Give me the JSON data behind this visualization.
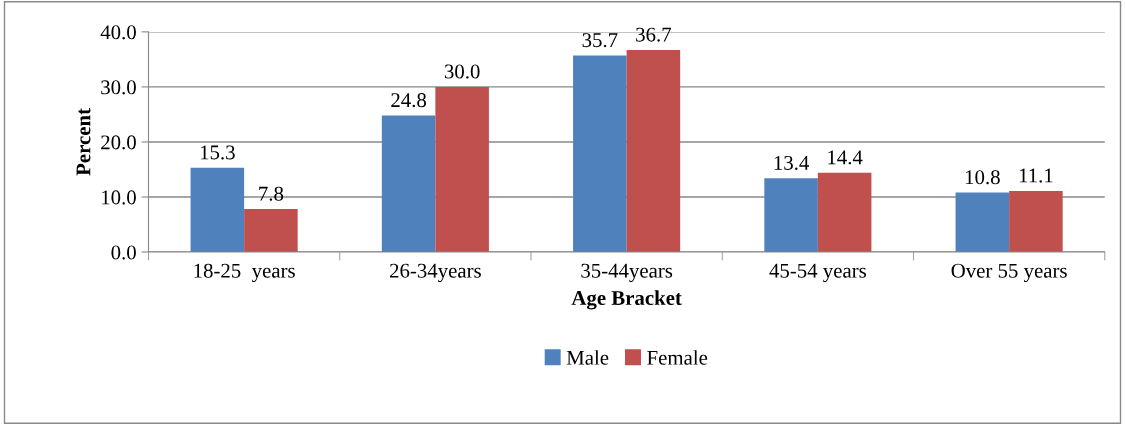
{
  "chart_data": {
    "type": "bar",
    "xlabel": "Age Bracket",
    "ylabel": "Percent",
    "categories": [
      "18-25  years",
      "26-34years",
      "35-44years",
      "45-54 years",
      "Over 55 years"
    ],
    "series": [
      {
        "name": "Male",
        "color": "#4f81bd",
        "values": [
          15.3,
          24.8,
          35.7,
          13.4,
          10.8
        ]
      },
      {
        "name": "Female",
        "color": "#c0504d",
        "values": [
          7.8,
          30.0,
          36.7,
          14.4,
          11.1
        ]
      }
    ],
    "ylim": [
      0,
      40
    ],
    "yticks": [
      {
        "value": 0,
        "label": "0.0"
      },
      {
        "value": 10,
        "label": "10.0"
      },
      {
        "value": 20,
        "label": "20.0"
      },
      {
        "value": 30,
        "label": "30.0"
      },
      {
        "value": 40,
        "label": "40.0"
      }
    ],
    "grid": "y",
    "legend": "bottom",
    "value_labels": [
      [
        "15.3",
        "24.8",
        "35.7",
        "13.4",
        "10.8"
      ],
      [
        "7.8",
        "30.0",
        "36.7",
        "14.4",
        "11.1"
      ]
    ]
  }
}
